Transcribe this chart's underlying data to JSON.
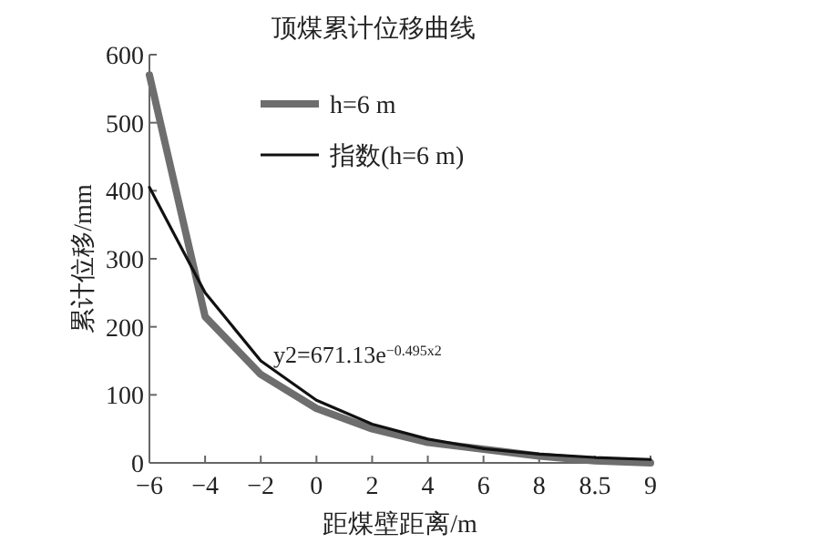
{
  "chart_data": {
    "type": "line",
    "title": "顶煤累计位移曲线",
    "xlabel": "距煤壁距离/m",
    "ylabel": "累计位移/mm",
    "categories": [
      "−6",
      "−4",
      "−2",
      "0",
      "2",
      "4",
      "6",
      "8",
      "8.5",
      "9"
    ],
    "series": [
      {
        "name": "h=6 m",
        "color": "#6e6e6e",
        "values": [
          570,
          215,
          130,
          80,
          50,
          30,
          20,
          10,
          3,
          0
        ]
      },
      {
        "name": "指数(h=6 m)",
        "color": "#111111",
        "values": [
          405,
          250,
          150,
          92,
          57,
          35,
          21,
          13,
          8,
          5
        ]
      }
    ],
    "ylim": [
      0,
      600
    ],
    "yticks": [
      0,
      100,
      200,
      300,
      400,
      500,
      600
    ],
    "annotations": [
      "y2=671.13e$^{−0.495x2}$"
    ],
    "legend": "top",
    "grid": false,
    "marker": "none",
    "line_style": "solid"
  }
}
